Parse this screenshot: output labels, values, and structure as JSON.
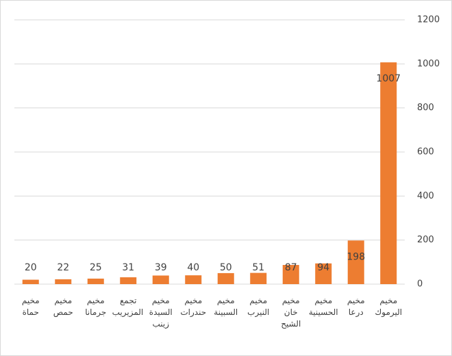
{
  "chart_data": {
    "type": "bar",
    "categories": [
      "مخيم حماة",
      "مخيم حمص",
      "مخيم جرمانا",
      "تجمع المزيريب",
      "مخيم السيدة زينب",
      "مخيم حندرات",
      "مخيم السبينة",
      "مخيم النيرب",
      "مخيم خان الشيح",
      "مخيم الحسينية",
      "مخيم درعا",
      "مخيم اليرموك"
    ],
    "values": [
      20,
      22,
      25,
      31,
      39,
      40,
      50,
      51,
      87,
      94,
      198,
      1007
    ],
    "color": "#ed7d31",
    "ylim": [
      0,
      1200
    ],
    "yticks": [
      0,
      200,
      400,
      600,
      800,
      1000,
      1200
    ],
    "grid": true,
    "y_axis_side": "right"
  }
}
